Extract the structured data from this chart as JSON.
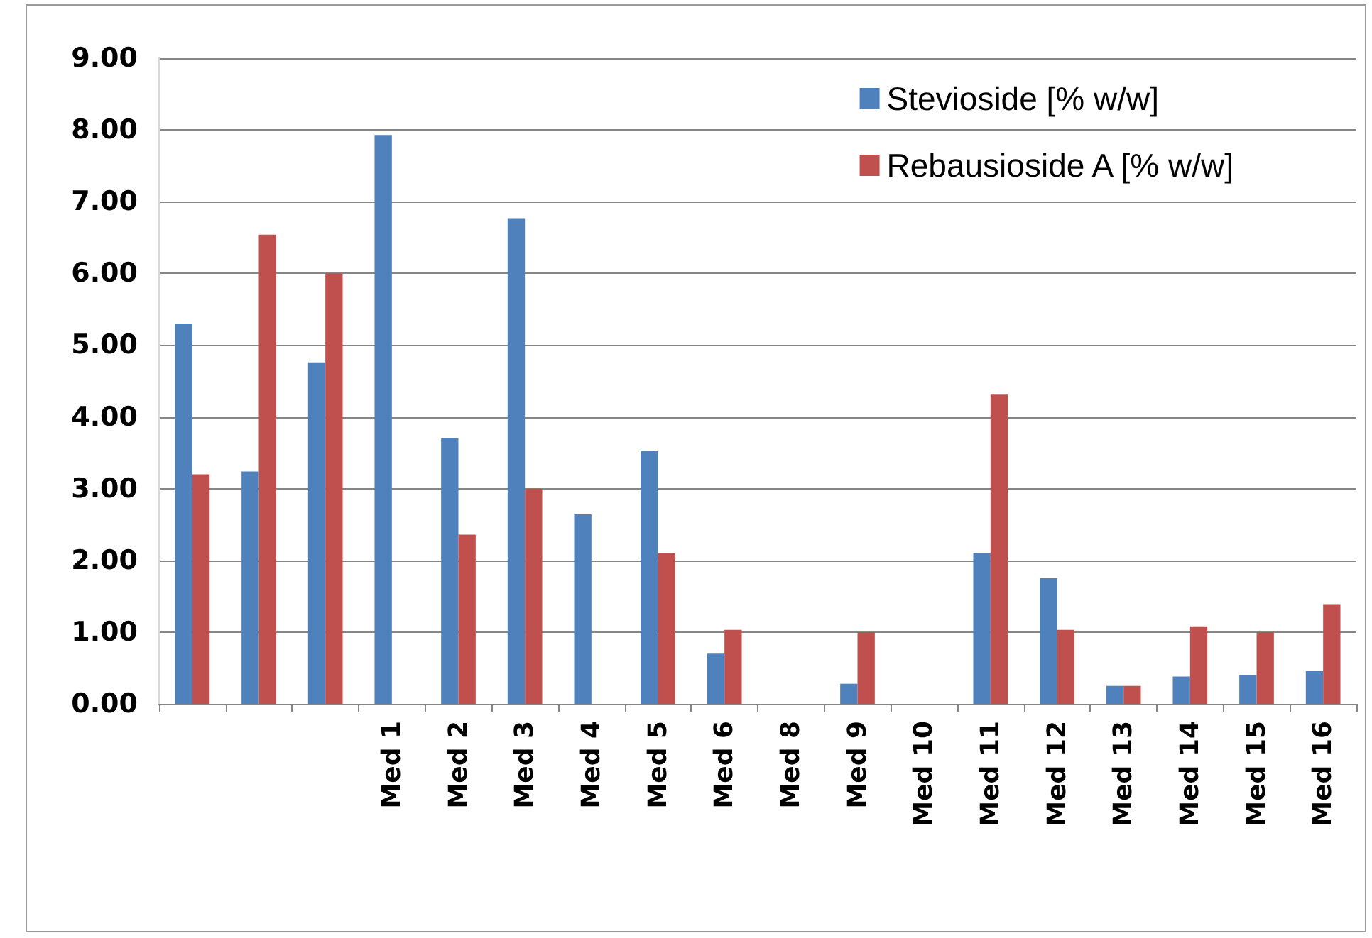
{
  "chart_data": {
    "type": "bar",
    "categories": [
      null,
      null,
      null,
      "Med 1",
      "Med 2",
      "Med 3",
      "Med 4",
      "Med 5",
      "Med 6",
      "Med 8",
      "Med 9",
      "Med 10",
      "Med 11",
      "Med 12",
      "Med 13",
      "Med 14",
      "Med 15",
      "Med 16"
    ],
    "series": [
      {
        "name": "Stevioside [% w/w]",
        "color": "#4f81bd",
        "values": [
          5.3,
          3.24,
          4.76,
          7.93,
          3.7,
          6.77,
          2.64,
          3.53,
          0.7,
          null,
          0.28,
          null,
          2.1,
          1.75,
          0.25,
          0.38,
          0.4,
          0.46
        ]
      },
      {
        "name": "Rebausioside A [% w/w]",
        "color": "#c0504d",
        "values": [
          3.2,
          6.54,
          6.0,
          null,
          2.36,
          3.0,
          null,
          2.1,
          1.03,
          null,
          1.0,
          null,
          4.31,
          1.03,
          0.25,
          1.08,
          1.0,
          1.39
        ]
      }
    ],
    "ylim": [
      0,
      9
    ],
    "yticks": [
      {
        "value": 0,
        "label": "0.00"
      },
      {
        "value": 1,
        "label": "1.00"
      },
      {
        "value": 2,
        "label": "2.00"
      },
      {
        "value": 3,
        "label": "3.00"
      },
      {
        "value": 4,
        "label": "4.00"
      },
      {
        "value": 5,
        "label": "5.00"
      },
      {
        "value": 6,
        "label": "6.00"
      },
      {
        "value": 7,
        "label": "7.00"
      },
      {
        "value": 8,
        "label": "8.00"
      },
      {
        "value": 9,
        "label": "9.00"
      }
    ],
    "grid": "y",
    "legend": "top right"
  }
}
